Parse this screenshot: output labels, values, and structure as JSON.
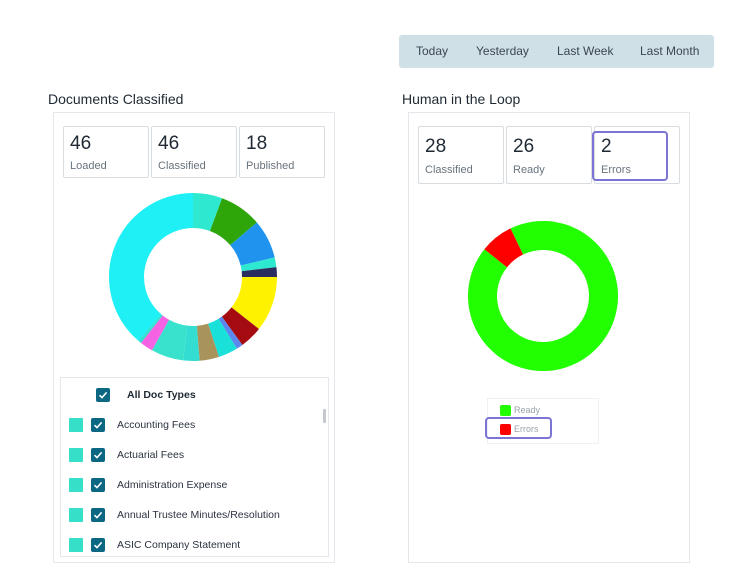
{
  "date_range": {
    "options": [
      "Today",
      "Yesterday",
      "Last Week",
      "Last Month"
    ]
  },
  "documents_classified": {
    "title": "Documents Classified",
    "stats": [
      {
        "value": "46",
        "label": "Loaded"
      },
      {
        "value": "46",
        "label": "Classified"
      },
      {
        "value": "18",
        "label": "Published"
      }
    ],
    "donut_colors": [
      "#2ee8cf",
      "#2ea60a",
      "#1f93ee",
      "#2ee8cf",
      "#2b2d5e",
      "#fff200",
      "#a50c12",
      "#5b87ef",
      "#19e0d8",
      "#a8935b",
      "#34ddd2",
      "#39e2cc",
      "#f562e4",
      "#32e1cf",
      "#1ef0f5"
    ],
    "all_label": "All Doc Types",
    "doc_types": [
      {
        "label": "Accounting Fees",
        "color": "#36e0c8"
      },
      {
        "label": "Actuarial Fees",
        "color": "#36e0c8"
      },
      {
        "label": "Administration Expense",
        "color": "#36e0c8"
      },
      {
        "label": "Annual Trustee Minutes/Resolution",
        "color": "#36e0c8"
      },
      {
        "label": "ASIC Company Statement",
        "color": "#36e0c8"
      }
    ]
  },
  "human_in_loop": {
    "title": "Human in the Loop",
    "stats": [
      {
        "value": "28",
        "label": "Classified"
      },
      {
        "value": "26",
        "label": "Ready"
      },
      {
        "value": "2",
        "label": "Errors"
      }
    ],
    "legend": [
      {
        "label": "Ready",
        "color": "#22ff00"
      },
      {
        "label": "Errors",
        "color": "#ff0000"
      }
    ],
    "colors": {
      "ready": "#22ff00",
      "errors": "#ff0000"
    }
  }
}
